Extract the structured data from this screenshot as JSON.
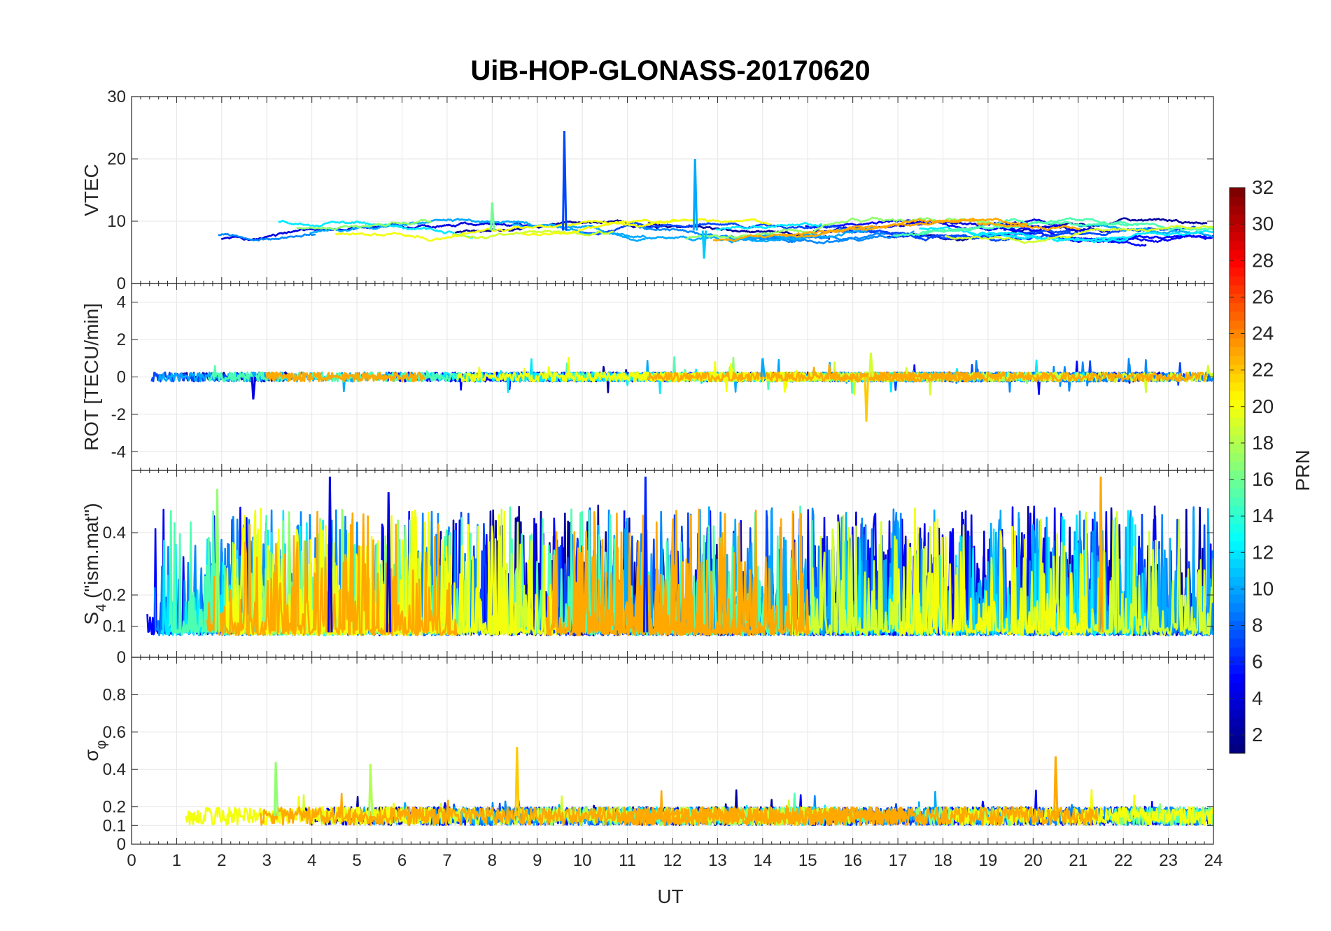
{
  "chart_data": {
    "type": "line",
    "title": "UiB-HOP-GLONASS-20170620",
    "xlabel": "UT",
    "xlim": [
      0,
      24
    ],
    "x_ticks": [
      "0",
      "1",
      "2",
      "3",
      "4",
      "5",
      "6",
      "7",
      "8",
      "9",
      "10",
      "11",
      "12",
      "13",
      "14",
      "15",
      "16",
      "17",
      "18",
      "19",
      "20",
      "21",
      "22",
      "23",
      "24"
    ],
    "grid": true,
    "panels": [
      {
        "id": "vtec",
        "ylabel": "VTEC",
        "ylim": [
          0,
          30
        ],
        "y_ticks": [
          0,
          10,
          20,
          30
        ],
        "y_tick_labels": [
          "0",
          "10",
          "20",
          "30"
        ],
        "baseline": 8.5,
        "noise": 0.8,
        "spikes": [
          {
            "x": 9.6,
            "y": 24.5,
            "prn": 7
          },
          {
            "x": 12.5,
            "y": 20,
            "prn": 10
          },
          {
            "x": 12.7,
            "y": 4,
            "prn": 11
          },
          {
            "x": 8.0,
            "y": 13,
            "prn": 16
          }
        ]
      },
      {
        "id": "rot",
        "ylabel": "ROT [TECU/min]",
        "ylim": [
          -5,
          5
        ],
        "y_ticks": [
          -4,
          -2,
          0,
          2,
          4
        ],
        "y_tick_labels": [
          "-4",
          "-2",
          "0",
          "2",
          "4"
        ],
        "baseline": 0,
        "noise": 0.25,
        "spikes": [
          {
            "x": 2.7,
            "y": -1.2,
            "prn": 4
          },
          {
            "x": 16.3,
            "y": -2.4,
            "prn": 22
          },
          {
            "x": 16.4,
            "y": 1.3,
            "prn": 19
          },
          {
            "x": 14.0,
            "y": 1.0,
            "prn": 10
          }
        ]
      },
      {
        "id": "s4",
        "ylabel": "S4 (\"ism.mat\")",
        "ylabel_main": "S",
        "ylabel_sub": "4",
        "ylabel_rest": " (\"ism.mat\")",
        "ylim": [
          0,
          0.6
        ],
        "y_ticks": [
          0,
          0.1,
          0.2,
          0.4
        ],
        "y_tick_labels": [
          "0",
          "0.1",
          "0.2",
          "0.4"
        ],
        "baseline": 0.08,
        "noise": 0.25,
        "spikes": [
          {
            "x": 4.4,
            "y": 0.58,
            "prn": 4
          },
          {
            "x": 11.4,
            "y": 0.58,
            "prn": 6
          },
          {
            "x": 21.5,
            "y": 0.58,
            "prn": 23
          },
          {
            "x": 1.9,
            "y": 0.54,
            "prn": 17
          },
          {
            "x": 5.7,
            "y": 0.53,
            "prn": 4
          }
        ]
      },
      {
        "id": "sigma",
        "ylabel": "σφ",
        "ylabel_main": "σ",
        "ylabel_sub": "φ",
        "ylim": [
          0,
          1
        ],
        "y_ticks": [
          0,
          0.1,
          0.2,
          0.4,
          0.6,
          0.8
        ],
        "y_tick_labels": [
          "0",
          "0.1",
          "0.2",
          "0.4",
          "0.6",
          "0.8"
        ],
        "baseline": 0.15,
        "noise": 0.08,
        "spikes": [
          {
            "x": 8.55,
            "y": 0.52,
            "prn": 22
          },
          {
            "x": 20.5,
            "y": 0.47,
            "prn": 23
          },
          {
            "x": 5.3,
            "y": 0.43,
            "prn": 18
          },
          {
            "x": 3.2,
            "y": 0.44,
            "prn": 17
          }
        ]
      }
    ],
    "series_prns": [
      2,
      4,
      5,
      7,
      9,
      10,
      12,
      15,
      17,
      19,
      20,
      23
    ],
    "colorbar": {
      "label": "PRN",
      "range": [
        1,
        32
      ],
      "ticks": [
        2,
        4,
        6,
        8,
        10,
        12,
        14,
        16,
        18,
        20,
        22,
        24,
        26,
        28,
        30,
        32
      ],
      "tick_labels": [
        "2",
        "4",
        "6",
        "8",
        "10",
        "12",
        "14",
        "16",
        "18",
        "20",
        "22",
        "24",
        "26",
        "28",
        "30",
        "32"
      ],
      "colormap": "jet",
      "placement": "right"
    }
  }
}
